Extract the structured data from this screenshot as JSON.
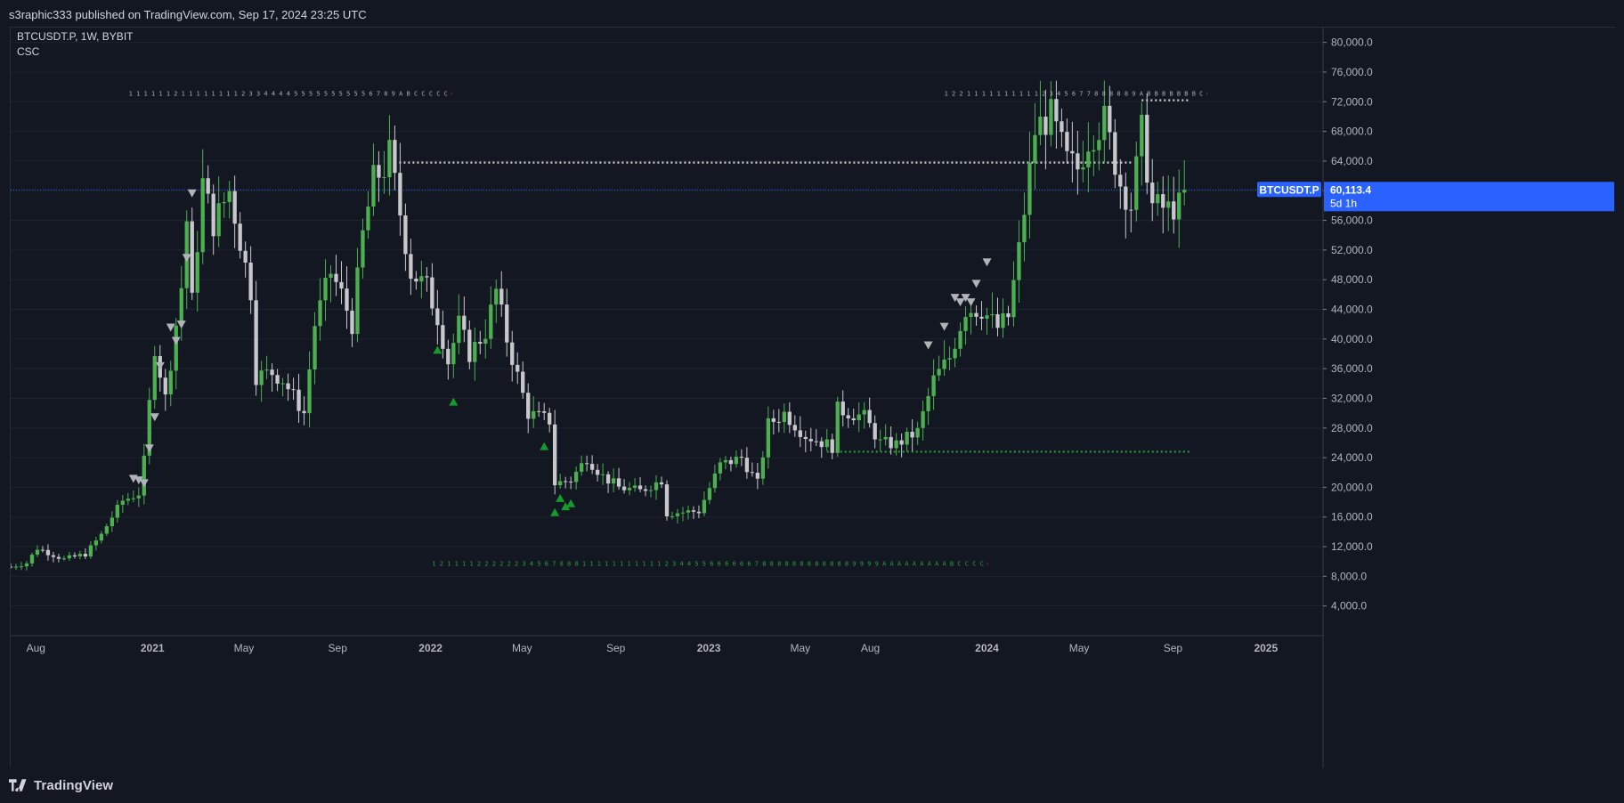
{
  "header": {
    "published_text": "s3raphic333 published on TradingView.com, Sep 17, 2024 23:25 UTC"
  },
  "legend": {
    "symbol_line": "BTCUSDT.P, 1W, BYBIT",
    "indicator": "CSC"
  },
  "price_label": {
    "symbol": "BTCUSDT.P",
    "price": "60,113.4",
    "countdown": "5d 1h"
  },
  "footer": {
    "brand": "TradingView"
  },
  "colors": {
    "background": "#131722",
    "up": "#4caf50",
    "down": "#c8c8cc",
    "grid": "#1e222d",
    "price_line": "#2962ff",
    "label_bg": "#2962ff",
    "level_white": "#d0d0d0",
    "level_green": "#2e9e3a",
    "arrow_up": "#159a2c",
    "arrow_down": "#b0b3b8"
  },
  "chart_data": {
    "type": "candlestick",
    "interval": "1W",
    "y_ticks": [
      4000,
      8000,
      12000,
      16000,
      20000,
      24000,
      28000,
      32000,
      36000,
      40000,
      44000,
      48000,
      52000,
      56000,
      60000,
      64000,
      68000,
      72000,
      76000,
      80000
    ],
    "y_tick_labels": [
      "4,000.0",
      "8,000.0",
      "12,000.0",
      "16,000.0",
      "20,000.0",
      "24,000.0",
      "28,000.0",
      "32,000.0",
      "36,000.0",
      "40,000.0",
      "44,000.0",
      "48,000.0",
      "52,000.0",
      "56,000.0",
      "60,000.0",
      "64,000.0",
      "68,000.0",
      "72,000.0",
      "76,000.0",
      "80,000.0"
    ],
    "ylim": [
      0,
      82000
    ],
    "x_ticks": [
      {
        "label": "Aug",
        "date": "2020-08-01",
        "bold": false
      },
      {
        "label": "2021",
        "date": "2021-01-01",
        "bold": true
      },
      {
        "label": "May",
        "date": "2021-05-01",
        "bold": false
      },
      {
        "label": "Sep",
        "date": "2021-09-01",
        "bold": false
      },
      {
        "label": "2022",
        "date": "2022-01-01",
        "bold": true
      },
      {
        "label": "May",
        "date": "2022-05-01",
        "bold": false
      },
      {
        "label": "Sep",
        "date": "2022-09-01",
        "bold": false
      },
      {
        "label": "2023",
        "date": "2023-01-01",
        "bold": true
      },
      {
        "label": "May",
        "date": "2023-05-01",
        "bold": false
      },
      {
        "label": "Aug",
        "date": "2023-08-01",
        "bold": false
      },
      {
        "label": "2024",
        "date": "2024-01-01",
        "bold": true
      },
      {
        "label": "May",
        "date": "2024-05-01",
        "bold": false
      },
      {
        "label": "Sep",
        "date": "2024-09-01",
        "bold": false
      },
      {
        "label": "2025",
        "date": "2025-01-01",
        "bold": true
      }
    ],
    "xlim": [
      "2020-06-29",
      "2025-03-17"
    ],
    "current_price": 60113.4,
    "close_waypoints": [
      [
        "2020-06-29",
        9300
      ],
      [
        "2020-07-20",
        9800
      ],
      [
        "2020-08-03",
        11800
      ],
      [
        "2020-09-07",
        10300
      ],
      [
        "2020-10-05",
        11000
      ],
      [
        "2020-10-26",
        13600
      ],
      [
        "2020-11-09",
        16000
      ],
      [
        "2020-11-23",
        18200
      ],
      [
        "2020-12-14",
        19200
      ],
      [
        "2020-12-21",
        23500
      ],
      [
        "2021-01-04",
        39000
      ],
      [
        "2021-01-18",
        32000
      ],
      [
        "2021-02-08",
        47000
      ],
      [
        "2021-02-15",
        56000
      ],
      [
        "2021-02-22",
        45000
      ],
      [
        "2021-03-08",
        61000
      ],
      [
        "2021-03-22",
        55500
      ],
      [
        "2021-04-12",
        60000
      ],
      [
        "2021-05-10",
        46500
      ],
      [
        "2021-05-17",
        35000
      ],
      [
        "2021-06-07",
        35500
      ],
      [
        "2021-06-21",
        34500
      ],
      [
        "2021-07-19",
        30000
      ],
      [
        "2021-08-02",
        42000
      ],
      [
        "2021-08-23",
        49000
      ],
      [
        "2021-09-06",
        46000
      ],
      [
        "2021-09-20",
        42000
      ],
      [
        "2021-10-04",
        54000
      ],
      [
        "2021-10-18",
        61500
      ],
      [
        "2021-11-01",
        63000
      ],
      [
        "2021-11-08",
        65000
      ],
      [
        "2021-11-22",
        57000
      ],
      [
        "2021-12-06",
        49000
      ],
      [
        "2021-12-27",
        47000
      ],
      [
        "2022-01-10",
        43000
      ],
      [
        "2022-01-24",
        37000
      ],
      [
        "2022-02-07",
        42000
      ],
      [
        "2022-02-21",
        38000
      ],
      [
        "2022-03-14",
        41000
      ],
      [
        "2022-03-28",
        46500
      ],
      [
        "2022-04-11",
        40000
      ],
      [
        "2022-05-09",
        30000
      ],
      [
        "2022-06-06",
        29000
      ],
      [
        "2022-06-13",
        20500
      ],
      [
        "2022-07-04",
        21000
      ],
      [
        "2022-07-25",
        24000
      ],
      [
        "2022-08-15",
        21500
      ],
      [
        "2022-09-05",
        20000
      ],
      [
        "2022-10-03",
        19500
      ],
      [
        "2022-10-31",
        21000
      ],
      [
        "2022-11-07",
        16500
      ],
      [
        "2022-12-19",
        16800
      ],
      [
        "2023-01-16",
        23000
      ],
      [
        "2023-02-13",
        24000
      ],
      [
        "2023-03-06",
        20500
      ],
      [
        "2023-03-20",
        28500
      ],
      [
        "2023-04-10",
        30000
      ],
      [
        "2023-05-08",
        27000
      ],
      [
        "2023-06-12",
        25500
      ],
      [
        "2023-06-19",
        30500
      ],
      [
        "2023-07-24",
        29500
      ],
      [
        "2023-08-14",
        26000
      ],
      [
        "2023-09-04",
        25800
      ],
      [
        "2023-10-02",
        27500
      ],
      [
        "2023-10-23",
        34500
      ],
      [
        "2023-11-13",
        37500
      ],
      [
        "2023-12-04",
        44000
      ],
      [
        "2023-12-25",
        44000
      ],
      [
        "2024-01-15",
        41500
      ],
      [
        "2024-01-29",
        43000
      ],
      [
        "2024-02-12",
        52000
      ],
      [
        "2024-03-04",
        68000
      ],
      [
        "2024-03-11",
        69000
      ],
      [
        "2024-03-25",
        70000
      ],
      [
        "2024-04-15",
        64000
      ],
      [
        "2024-04-29",
        63000
      ],
      [
        "2024-05-13",
        67000
      ],
      [
        "2024-06-03",
        69500
      ],
      [
        "2024-06-24",
        61000
      ],
      [
        "2024-07-08",
        58000
      ],
      [
        "2024-07-22",
        68000
      ],
      [
        "2024-08-05",
        58000
      ],
      [
        "2024-08-26",
        57500
      ],
      [
        "2024-09-09",
        58000
      ],
      [
        "2024-09-16",
        60113
      ]
    ],
    "levels": [
      {
        "color": "white",
        "from": "2021-11-15",
        "to": "2024-07-08",
        "price": 63800
      },
      {
        "color": "white",
        "from": "2024-07-22",
        "to": "2024-09-23",
        "price": 72200
      },
      {
        "color": "green",
        "from": "2023-06-05",
        "to": "2024-09-23",
        "price": 24800
      }
    ],
    "down_arrows": [
      [
        "2020-12-07",
        21200
      ],
      [
        "2020-12-14",
        21000
      ],
      [
        "2020-12-21",
        20600
      ],
      [
        "2020-12-28",
        25300
      ],
      [
        "2021-01-04",
        29500
      ],
      [
        "2021-01-11",
        36400
      ],
      [
        "2021-01-25",
        41600
      ],
      [
        "2021-02-01",
        39800
      ],
      [
        "2021-02-08",
        42000
      ],
      [
        "2021-02-15",
        51000
      ],
      [
        "2021-02-22",
        59700
      ],
      [
        "2023-10-16",
        39200
      ],
      [
        "2023-11-06",
        41700
      ],
      [
        "2023-11-20",
        45600
      ],
      [
        "2023-11-27",
        45000
      ],
      [
        "2023-12-04",
        45600
      ],
      [
        "2023-12-11",
        45000
      ],
      [
        "2023-12-18",
        47500
      ],
      [
        "2024-01-01",
        50400
      ]
    ],
    "up_arrows": [
      [
        "2022-01-10",
        38500
      ],
      [
        "2022-01-31",
        31500
      ],
      [
        "2022-05-30",
        25500
      ],
      [
        "2022-06-13",
        16600
      ],
      [
        "2022-06-20",
        18500
      ],
      [
        "2022-06-27",
        17400
      ],
      [
        "2022-07-04",
        17800
      ]
    ],
    "counter_rows": [
      {
        "text": "1 1 1 1 1 1 2 1 1 1 1 1 1 1 1 2 3 3 4 4 4 4 5 5 5 5 5 5 5 5 5 5 6 7 8 9 A B C C C C C",
        "tail": "C",
        "color": "white",
        "from": "2020-12-01",
        "price": 72800
      },
      {
        "text": "1 2 2 1 1 1 1 1 1 1 1 1 1 2 3 4 5 6 7 7 8 8 8 8 8 9 A B B B B B B B C",
        "tail": "C",
        "color": "white",
        "from": "2023-11-06",
        "price": 72800
      },
      {
        "text": "1 2 1 1 1 1 2 2 2 2 2 2 3 4 5 6 7 8 8 8 1 1 1 1 1 1 1 1 1 1 1 2 3 4 4 5 5 6 6 6 6 6 6 7 8 8 8 8 8 8 8 8 8 8 8 8 9 9 9 9 A A A A A A A A A B C C C C",
        "tail": "C",
        "color": "green",
        "from": "2022-01-03",
        "price": 9400
      }
    ]
  }
}
